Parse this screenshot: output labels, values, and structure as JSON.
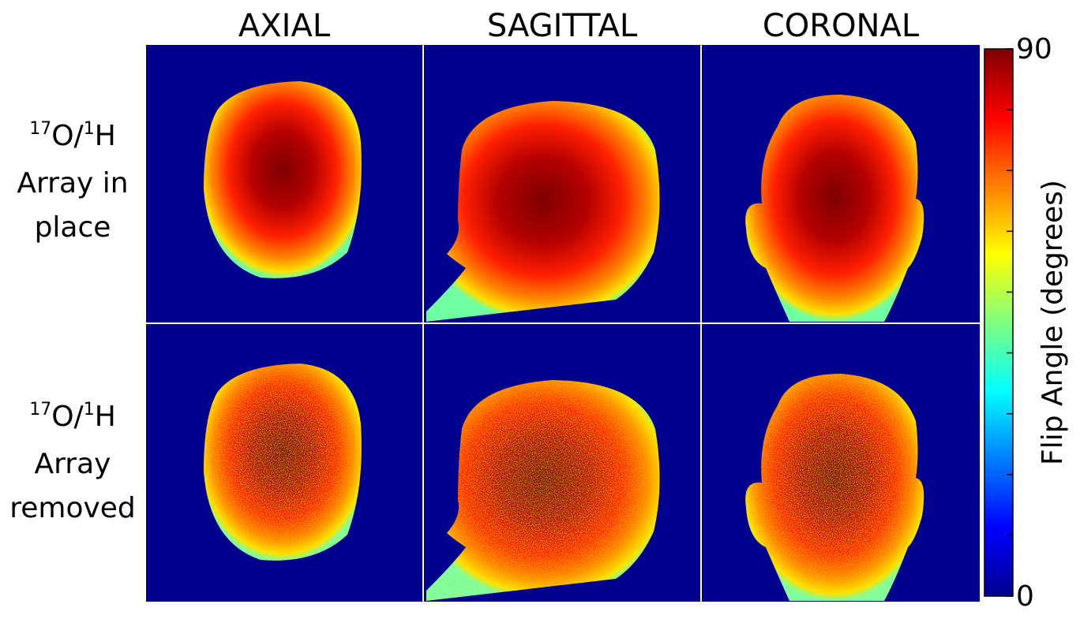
{
  "columns": [
    "AXIAL",
    "SAGITTAL",
    "CORONAL"
  ],
  "rows": [
    {
      "sup1": "17",
      "mid": "O/",
      "sup2": "1",
      "end": "H",
      "lines": [
        "Array in",
        "place"
      ]
    },
    {
      "sup1": "17",
      "mid": "O/",
      "sup2": "1",
      "end": "H",
      "lines": [
        "Array",
        "removed"
      ]
    }
  ],
  "colorbar": {
    "label": "Flip Angle (degrees)",
    "lim": [
      0,
      90
    ],
    "ticks": [
      0,
      90
    ],
    "minor_ticks": [
      10,
      20,
      30,
      40,
      50,
      60,
      70,
      80
    ]
  }
}
